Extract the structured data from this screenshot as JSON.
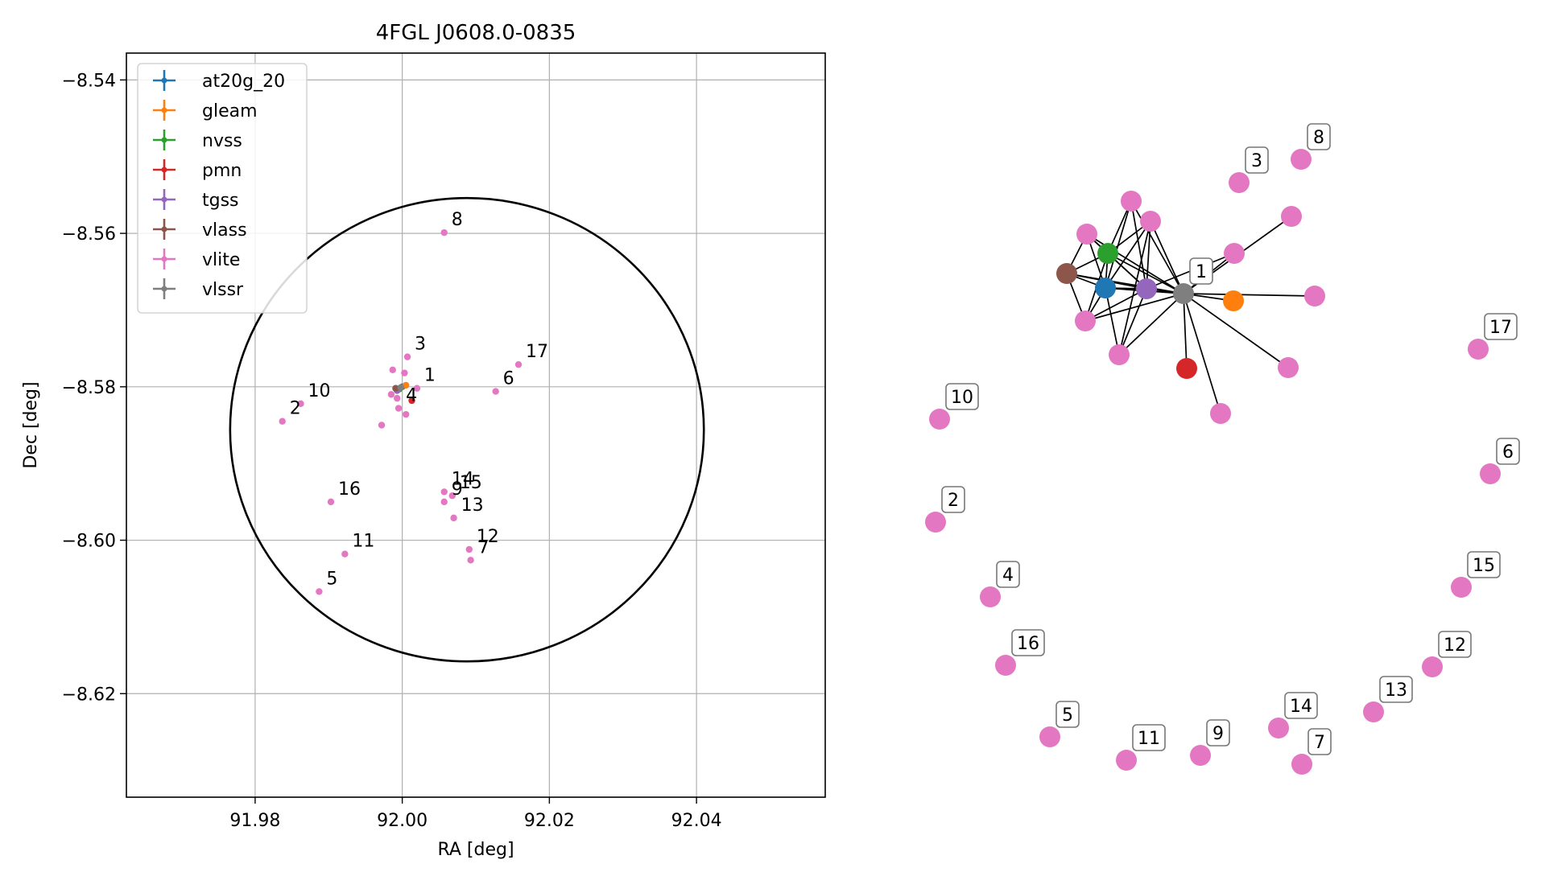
{
  "chart_data": [
    {
      "type": "scatter",
      "title": "4FGL J0608.0-0835",
      "xlabel": "RA [deg]",
      "ylabel": "Dec [deg]",
      "xlim": [
        91.9625,
        92.0575
      ],
      "ylim": [
        -8.6335,
        -8.5365
      ],
      "xticks": [
        91.98,
        92.0,
        92.02,
        92.04
      ],
      "xtick_labels": [
        "91.98",
        "92.00",
        "92.02",
        "92.04"
      ],
      "yticks": [
        -8.54,
        -8.56,
        -8.58,
        -8.6,
        -8.62
      ],
      "ytick_labels": [
        "−8.54",
        "−8.56",
        "−8.58",
        "−8.60",
        "−8.62"
      ],
      "grid": true,
      "legend_position": "upper-left",
      "circle": {
        "center": [
          92.0088,
          -8.5856
        ],
        "radius_ra": 0.0322,
        "radius_dec": 0.0302
      },
      "series": [
        {
          "name": "at20g_20",
          "color": "#1f77b4",
          "points": [
            [
              92.0,
              -8.58
            ]
          ]
        },
        {
          "name": "gleam",
          "color": "#ff7f0e",
          "points": [
            [
              92.0005,
              -8.5798
            ]
          ]
        },
        {
          "name": "nvss",
          "color": "#2ca02c",
          "points": [
            [
              91.9996,
              -8.5803
            ]
          ]
        },
        {
          "name": "pmn",
          "color": "#d62728",
          "points": [
            [
              92.0013,
              -8.5818
            ]
          ]
        },
        {
          "name": "tgss",
          "color": "#9467bd",
          "points": [
            [
              91.9993,
              -8.5805
            ]
          ]
        },
        {
          "name": "vlass",
          "color": "#8c564b",
          "points": [
            [
              91.9991,
              -8.5802
            ]
          ]
        },
        {
          "name": "vlite",
          "color": "#e377c2",
          "points": [
            [
              92.002,
              -8.5802
            ],
            [
              91.9837,
              -8.5845
            ],
            [
              92.0007,
              -8.5761
            ],
            [
              91.9995,
              -8.5828
            ],
            [
              91.9887,
              -8.6067
            ],
            [
              92.0127,
              -8.5806
            ],
            [
              92.0093,
              -8.6026
            ],
            [
              92.0057,
              -8.5599
            ],
            [
              92.0057,
              -8.595
            ],
            [
              91.9862,
              -8.5822
            ],
            [
              91.9922,
              -8.6018
            ],
            [
              92.0091,
              -8.6012
            ],
            [
              92.007,
              -8.5971
            ],
            [
              92.0057,
              -8.5937
            ],
            [
              92.0068,
              -8.5942
            ],
            [
              91.9903,
              -8.595
            ],
            [
              92.0158,
              -8.5771
            ],
            [
              91.9987,
              -8.5778
            ],
            [
              92.0003,
              -8.5782
            ],
            [
              91.9985,
              -8.581
            ],
            [
              91.9972,
              -8.585
            ],
            [
              92.0005,
              -8.5836
            ],
            [
              91.9993,
              -8.5815
            ]
          ]
        },
        {
          "name": "vlssr",
          "color": "#7f7f7f",
          "points": [
            [
              91.9998,
              -8.5801
            ]
          ]
        }
      ],
      "point_labels": [
        {
          "text": "1",
          "x": 92.002,
          "y": -8.5802
        },
        {
          "text": "2",
          "x": 91.9837,
          "y": -8.5845
        },
        {
          "text": "3",
          "x": 92.0007,
          "y": -8.5761
        },
        {
          "text": "4",
          "x": 91.9995,
          "y": -8.5828
        },
        {
          "text": "5",
          "x": 91.9887,
          "y": -8.6067
        },
        {
          "text": "6",
          "x": 92.0127,
          "y": -8.5806
        },
        {
          "text": "7",
          "x": 92.0093,
          "y": -8.6026
        },
        {
          "text": "8",
          "x": 92.0057,
          "y": -8.5599
        },
        {
          "text": "9",
          "x": 92.0057,
          "y": -8.595
        },
        {
          "text": "10",
          "x": 91.9862,
          "y": -8.5822
        },
        {
          "text": "11",
          "x": 91.9922,
          "y": -8.6018
        },
        {
          "text": "12",
          "x": 92.0091,
          "y": -8.6012
        },
        {
          "text": "13",
          "x": 92.007,
          "y": -8.5971
        },
        {
          "text": "14",
          "x": 92.0057,
          "y": -8.5937
        },
        {
          "text": "15",
          "x": 92.0068,
          "y": -8.5942
        },
        {
          "text": "16",
          "x": 91.9903,
          "y": -8.595
        },
        {
          "text": "17",
          "x": 92.0158,
          "y": -8.5771
        }
      ]
    },
    {
      "type": "network",
      "node_colors": {
        "vlite": "#e377c2",
        "at20g_20": "#1f77b4",
        "gleam": "#ff7f0e",
        "nvss": "#2ca02c",
        "pmn": "#d62728",
        "tgss": "#9467bd",
        "vlass": "#8c564b",
        "vlssr": "#7f7f7f"
      },
      "hub_label": "1",
      "labeled_nodes": [
        "1",
        "2",
        "3",
        "4",
        "5",
        "6",
        "7",
        "8",
        "9",
        "10",
        "11",
        "12",
        "13",
        "14",
        "15",
        "16",
        "17"
      ]
    }
  ]
}
